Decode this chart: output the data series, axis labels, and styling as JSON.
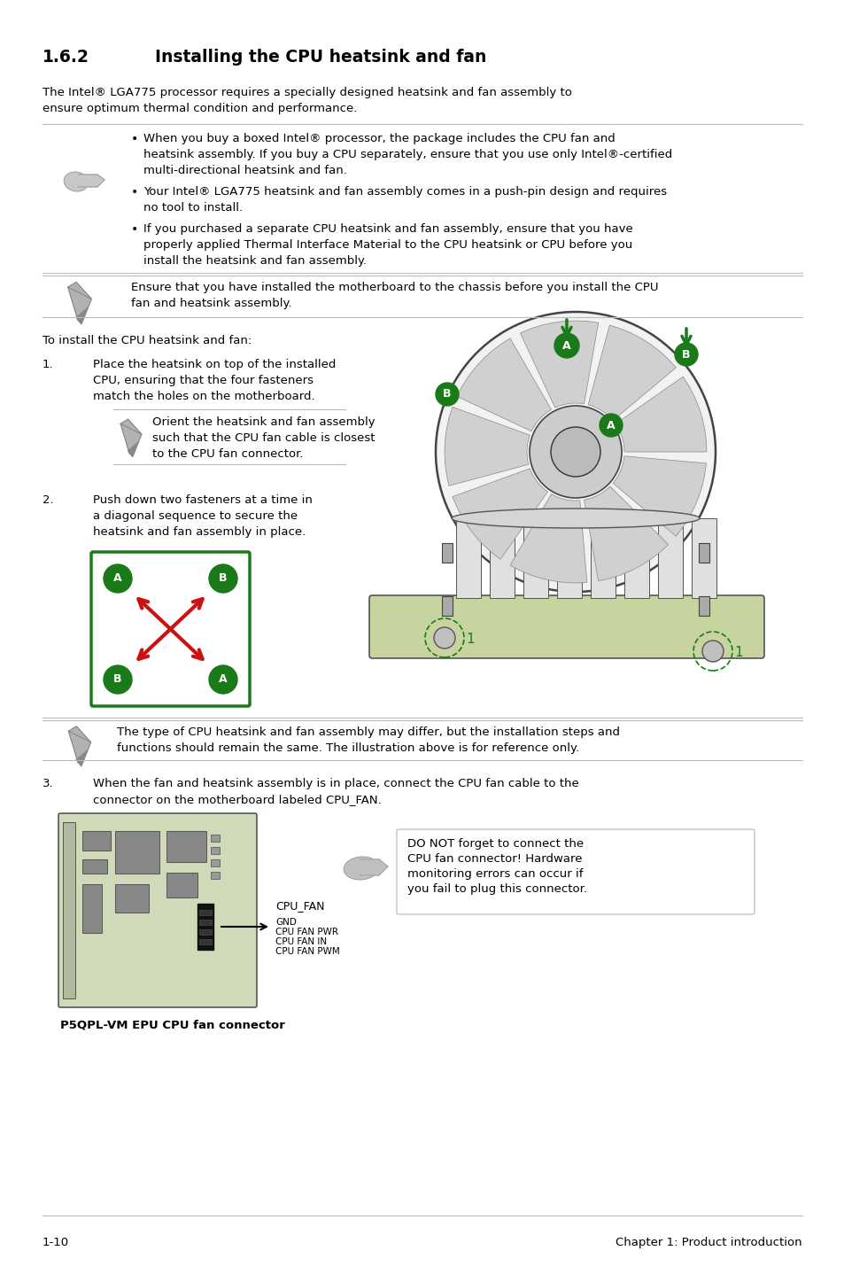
{
  "bg_color": "#ffffff",
  "section_num": "1.6.2",
  "section_title": "Installing the CPU heatsink and fan",
  "intro_line1": "The Intel® LGA775 processor requires a specially designed heatsink and fan assembly to",
  "intro_line2": "ensure optimum thermal condition and performance.",
  "bullet1_line1": "When you buy a boxed Intel® processor, the package includes the CPU fan and",
  "bullet1_line2": "heatsink assembly. If you buy a CPU separately, ensure that you use only Intel®-certified",
  "bullet1_line3": "multi-directional heatsink and fan.",
  "bullet2_line1": "Your Intel® LGA775 heatsink and fan assembly comes in a push-pin design and requires",
  "bullet2_line2": "no tool to install.",
  "bullet3_line1": "If you purchased a separate CPU heatsink and fan assembly, ensure that you have",
  "bullet3_line2": "properly applied Thermal Interface Material to the CPU heatsink or CPU before you",
  "bullet3_line3": "install the heatsink and fan assembly.",
  "caution_line1": "Ensure that you have installed the motherboard to the chassis before you install the CPU",
  "caution_line2": "fan and heatsink assembly.",
  "to_install": "To install the CPU heatsink and fan:",
  "step1_num": "1.",
  "step1_line1": "Place the heatsink on top of the installed",
  "step1_line2": "CPU, ensuring that the four fasteners",
  "step1_line3": "match the holes on the motherboard.",
  "step1_note1": "Orient the heatsink and fan assembly",
  "step1_note2": "such that the CPU fan cable is closest",
  "step1_note3": "to the CPU fan connector.",
  "step2_num": "2.",
  "step2_line1": "Push down two fasteners at a time in",
  "step2_line2": "a diagonal sequence to secure the",
  "step2_line3": "heatsink and fan assembly in place.",
  "step2_note1": "The type of CPU heatsink and fan assembly may differ, but the installation steps and",
  "step2_note2": "functions should remain the same. The illustration above is for reference only.",
  "step3_num": "3.",
  "step3_line1": "When the fan and heatsink assembly is in place, connect the CPU fan cable to the",
  "step3_line2": "connector on the motherboard labeled CPU_FAN.",
  "cpu_fan_label": "CPU_FAN",
  "pin1": "GND",
  "pin2": "CPU FAN PWR",
  "pin3": "CPU FAN IN",
  "pin4": "CPU FAN PWM",
  "warn1": "DO NOT forget to connect the",
  "warn2": "CPU fan connector! Hardware",
  "warn3": "monitoring errors can occur if",
  "warn4": "you fail to plug this connector.",
  "mb_label": "P5QPL-VM EPU CPU fan connector",
  "footer_left": "1-10",
  "footer_right": "Chapter 1: Product introduction",
  "green": "#1a7a1a",
  "red": "#cc1111",
  "gray_line": "#bbbbbb",
  "icon_gray": "#999999",
  "text_fs": 9.5,
  "note_fs": 9.5
}
